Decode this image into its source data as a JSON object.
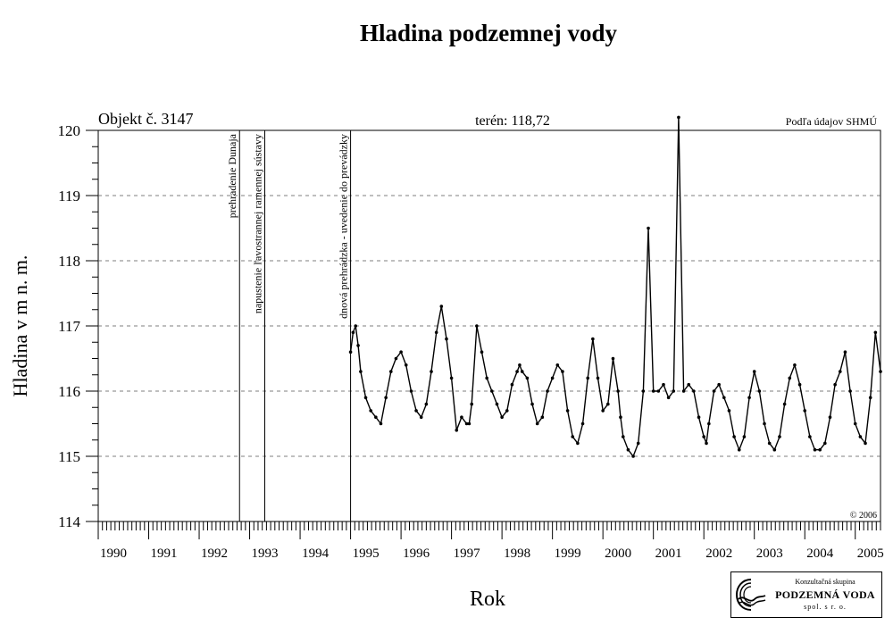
{
  "chart_data": {
    "type": "scatter",
    "title": "Hladina podzemnej vody",
    "xlabel": "Rok",
    "ylabel": "Hladina v m n. m.",
    "object_label": "Objekt č. 3147",
    "terrain_label": "terén: 118,72",
    "source_label": "Podľa údajov SHMÚ",
    "copyright": "© 2006",
    "x_range": [
      1990,
      2005.5
    ],
    "ylim": [
      114,
      120
    ],
    "y_ticks": [
      "114",
      "115",
      "116",
      "117",
      "118",
      "119",
      "120"
    ],
    "x_ticks": [
      "1990",
      "1991",
      "1992",
      "1993",
      "1994",
      "1995",
      "1996",
      "1997",
      "1998",
      "1999",
      "2000",
      "2001",
      "2002",
      "2003",
      "2004",
      "2005"
    ],
    "grid": "horizontal dashed",
    "events": [
      {
        "x": 1992.8,
        "label": "prehradenie Dunaja"
      },
      {
        "x": 1993.3,
        "label": "napustenie ľavostrannej ramennej sústavy"
      },
      {
        "x": 1995.0,
        "label": "dnová prehrádzka - uvedenie do prevádzky"
      }
    ],
    "series": [
      {
        "x": [
          1995.0,
          1995.05,
          1995.1,
          1995.15,
          1995.2,
          1995.3,
          1995.4,
          1995.5,
          1995.6,
          1995.7,
          1995.8,
          1995.9,
          1996.0,
          1996.1,
          1996.2,
          1996.3,
          1996.4,
          1996.5,
          1996.6,
          1996.7,
          1996.8,
          1996.9,
          1997.0,
          1997.1,
          1997.2,
          1997.3,
          1997.35,
          1997.4,
          1997.5,
          1997.6,
          1997.7,
          1997.8,
          1997.9,
          1998.0,
          1998.1,
          1998.2,
          1998.3,
          1998.35,
          1998.4,
          1998.5,
          1998.6,
          1998.7,
          1998.8,
          1998.9,
          1999.0,
          1999.1,
          1999.2,
          1999.3,
          1999.4,
          1999.5,
          1999.6,
          1999.7,
          1999.8,
          1999.9,
          2000.0,
          2000.1,
          2000.2,
          2000.3,
          2000.35,
          2000.4,
          2000.5,
          2000.6,
          2000.7,
          2000.8,
          2000.9,
          2001.0,
          2001.1,
          2001.2,
          2001.3,
          2001.4,
          2001.5,
          2001.6,
          2001.7,
          2001.8,
          2001.9,
          2002.0,
          2002.05,
          2002.1,
          2002.2,
          2002.3,
          2002.4,
          2002.5,
          2002.6,
          2002.7,
          2002.8,
          2002.9,
          2003.0,
          2003.1,
          2003.2,
          2003.3,
          2003.4,
          2003.5,
          2003.6,
          2003.7,
          2003.8,
          2003.9,
          2004.0,
          2004.1,
          2004.2,
          2004.3,
          2004.4,
          2004.5,
          2004.6,
          2004.7,
          2004.8,
          2004.9,
          2005.0,
          2005.1,
          2005.2,
          2005.3,
          2005.4,
          2005.5
        ],
        "y": [
          116.6,
          116.9,
          117.0,
          116.7,
          116.3,
          115.9,
          115.7,
          115.6,
          115.5,
          115.9,
          116.3,
          116.5,
          116.6,
          116.4,
          116.0,
          115.7,
          115.6,
          115.8,
          116.3,
          116.9,
          117.3,
          116.8,
          116.2,
          115.4,
          115.6,
          115.5,
          115.5,
          115.8,
          117.0,
          116.6,
          116.2,
          116.0,
          115.8,
          115.6,
          115.7,
          116.1,
          116.3,
          116.4,
          116.3,
          116.2,
          115.8,
          115.5,
          115.6,
          116.0,
          116.2,
          116.4,
          116.3,
          115.7,
          115.3,
          115.2,
          115.5,
          116.2,
          116.8,
          116.2,
          115.7,
          115.8,
          116.5,
          116.0,
          115.6,
          115.3,
          115.1,
          115.0,
          115.2,
          116.0,
          118.5,
          116.0,
          116.0,
          116.1,
          115.9,
          116.0,
          120.2,
          116.0,
          116.1,
          116.0,
          115.6,
          115.3,
          115.2,
          115.5,
          116.0,
          116.1,
          115.9,
          115.7,
          115.3,
          115.1,
          115.3,
          115.9,
          116.3,
          116.0,
          115.5,
          115.2,
          115.1,
          115.3,
          115.8,
          116.2,
          116.4,
          116.1,
          115.7,
          115.3,
          115.1,
          115.1,
          115.2,
          115.6,
          116.1,
          116.3,
          116.6,
          116.0,
          115.5,
          115.3,
          115.2,
          115.9,
          116.9,
          116.3
        ]
      }
    ]
  },
  "logo": {
    "top_text": "Konzultačná skupina",
    "main_text": "PODZEMNÁ VODA",
    "bottom_text": "spol. s r. o."
  }
}
